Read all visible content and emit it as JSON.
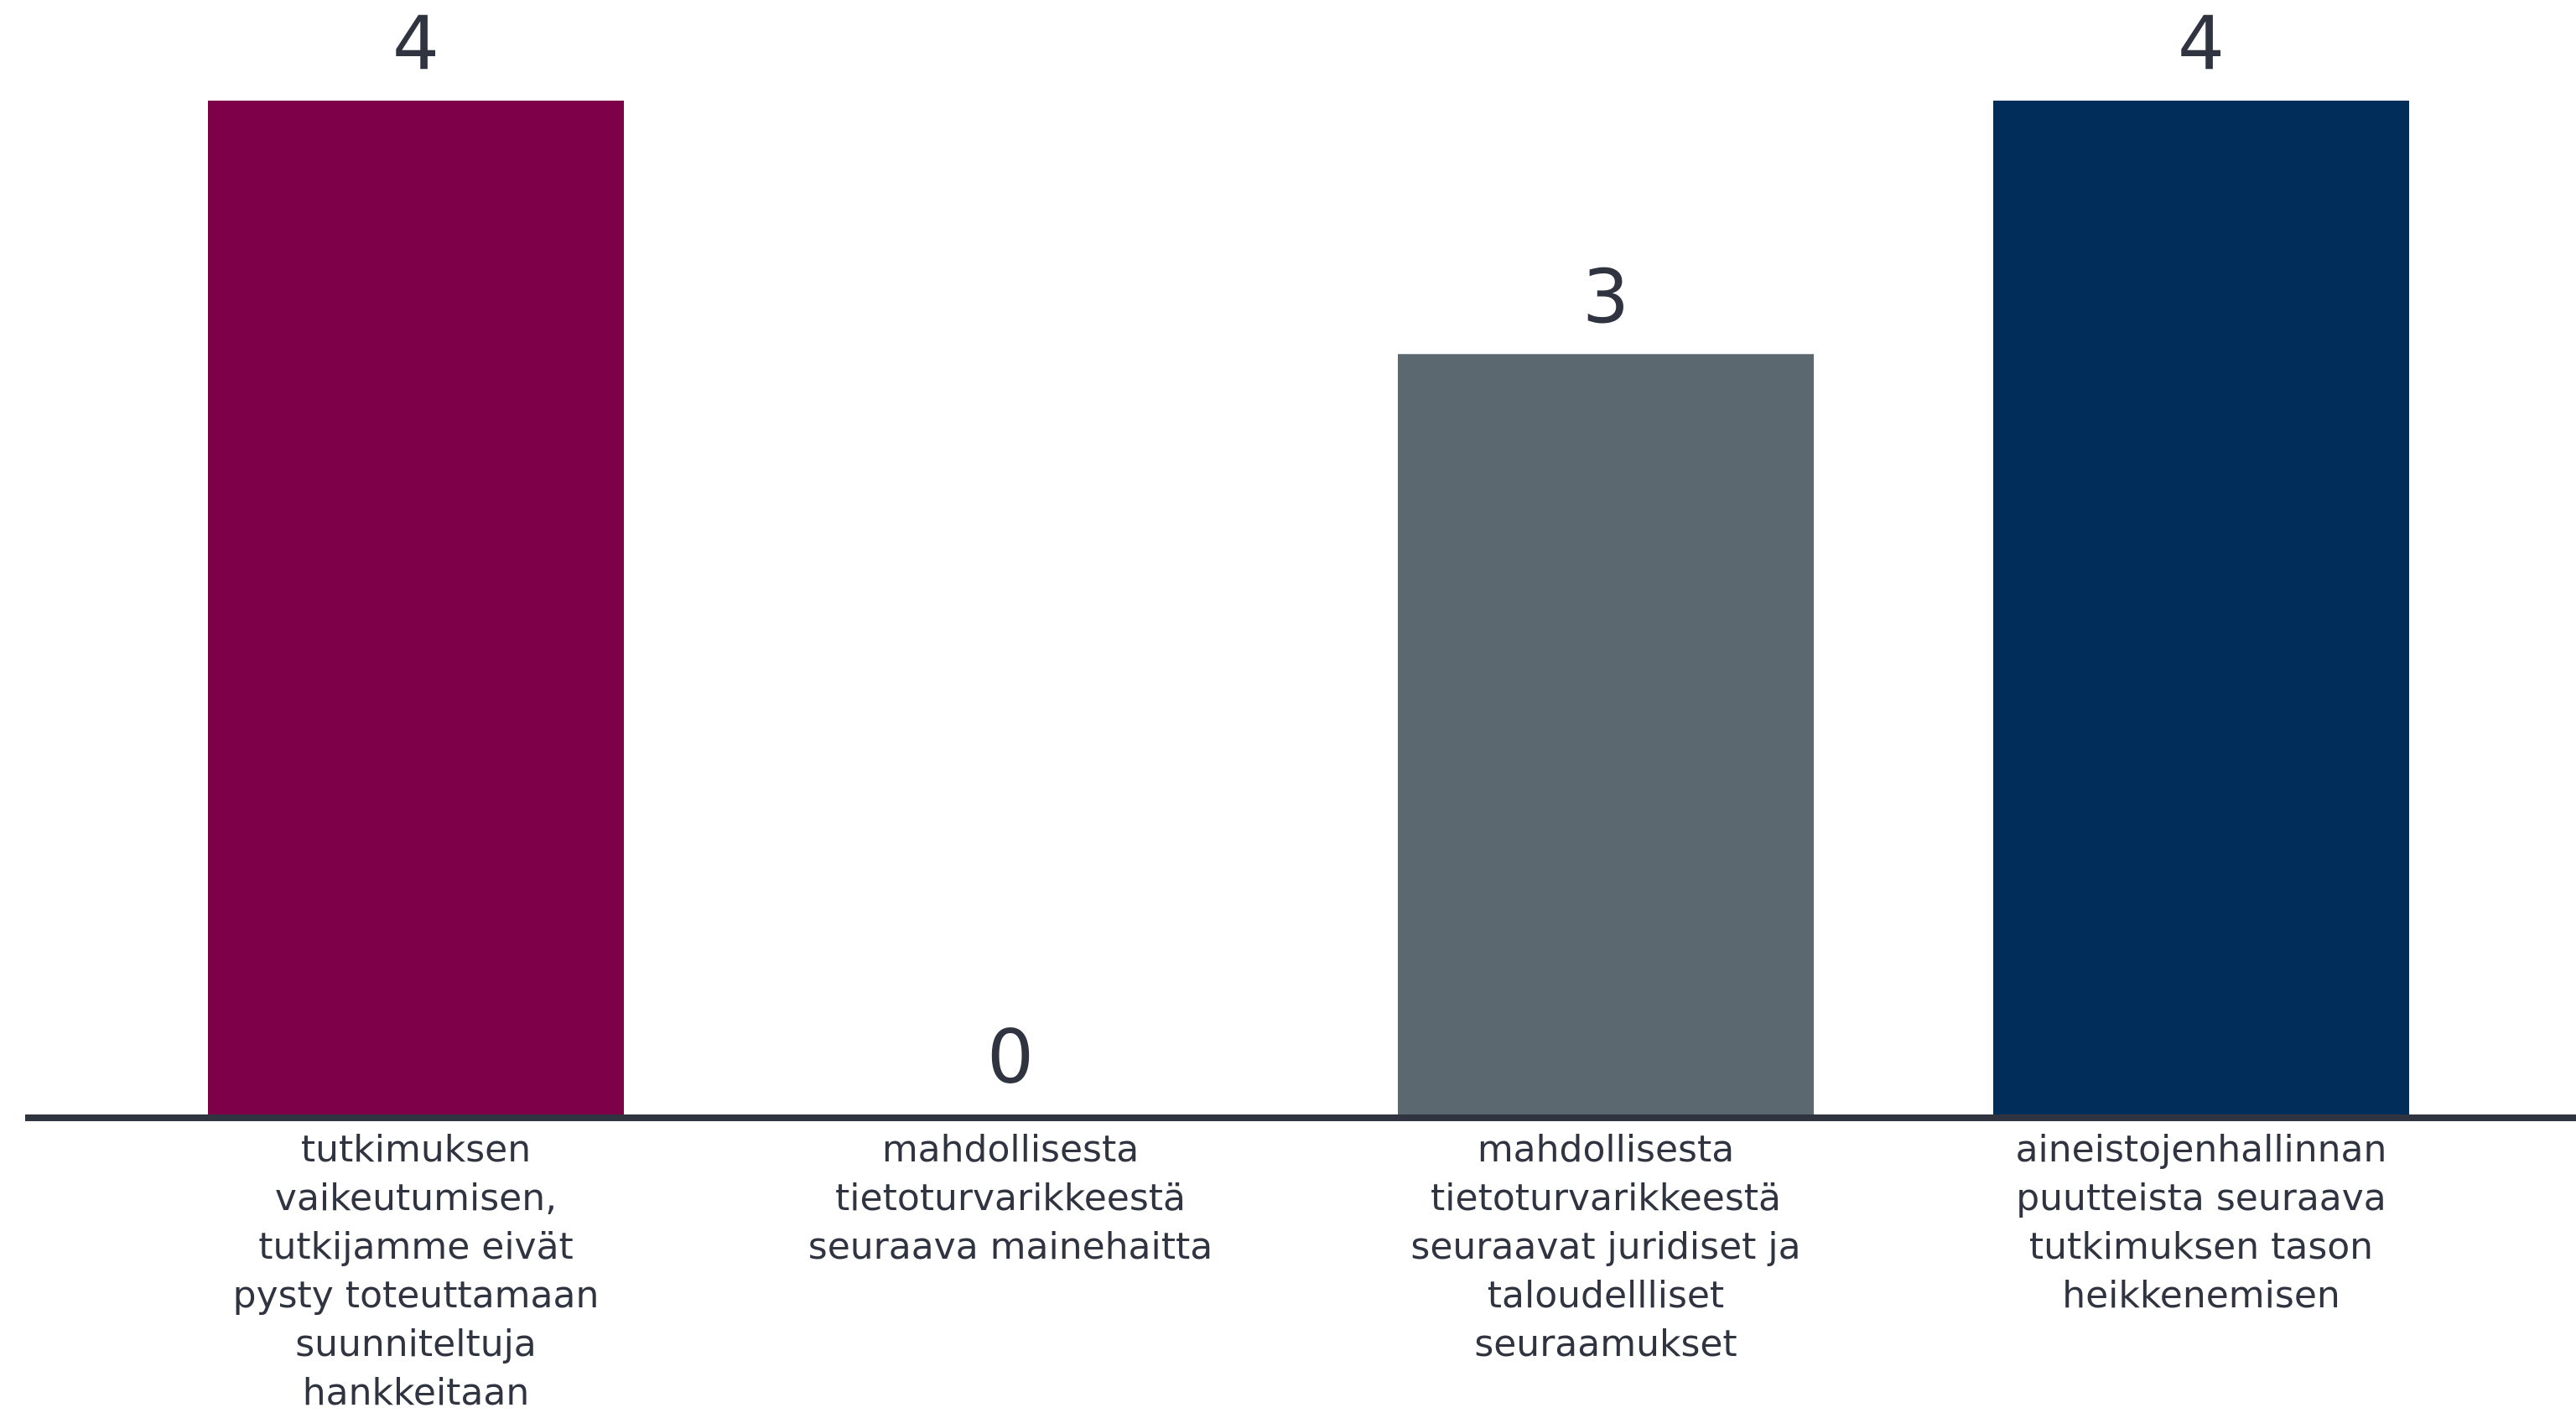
{
  "chart_data": {
    "type": "bar",
    "title": "",
    "xlabel": "",
    "ylabel": "",
    "ylim": [
      0,
      4
    ],
    "grid": false,
    "legend": "none",
    "categories": [
      "tutkimuksen vaikeutumisen, tutkijamme eivät pysty toteuttamaan suunniteltuja hankkeitaan",
      "mahdollisesta tietoturvarikkeestä seuraava mainehaitta",
      "mahdollisesta tietoturvarikkeestä seuraavat juridiset ja taloudellliset seuraamukset",
      "aineistojenhallinnan puutteista seuraava tutkimuksen tason heikkenemisen"
    ],
    "category_lines": [
      [
        "tutkimuksen",
        "vaikeutumisen,",
        "tutkijamme eivät",
        "pysty toteuttamaan",
        "suunniteltuja",
        "hankkeitaan"
      ],
      [
        "mahdollisesta",
        "tietoturvarikkeestä",
        "seuraava mainehaitta"
      ],
      [
        "mahdollisesta",
        "tietoturvarikkeestä",
        "seuraavat juridiset ja",
        "taloudellliset",
        "seuraamukset"
      ],
      [
        "aineistojenhallinnan",
        "puutteista seuraava",
        "tutkimuksen tason",
        "heikkenemisen"
      ]
    ],
    "values": [
      4,
      0,
      3,
      4
    ],
    "value_labels": [
      "4",
      "0",
      "3",
      "4"
    ],
    "colors": [
      "#7d0049",
      "#7d0049",
      "#5c6870",
      "#002d5a"
    ],
    "axis_color": "#2f3440",
    "text_color": "#2f3440"
  }
}
